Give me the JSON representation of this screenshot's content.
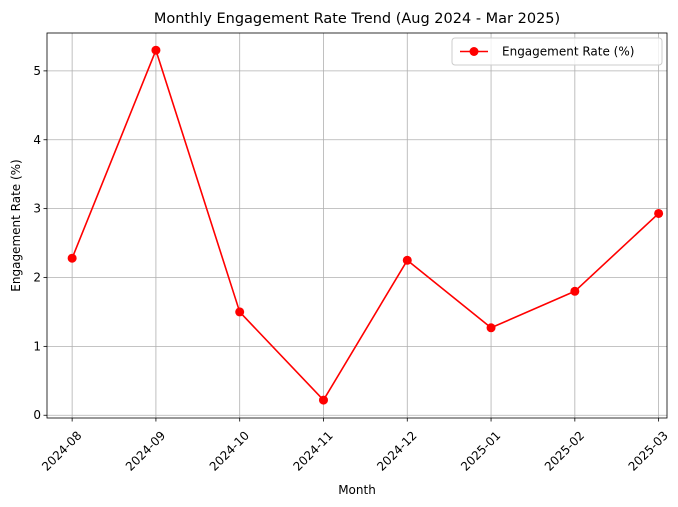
{
  "chart_data": {
    "type": "line",
    "title": "Monthly Engagement Rate Trend (Aug 2024 - Mar 2025)",
    "xlabel": "Month",
    "ylabel": "Engagement Rate (%)",
    "categories": [
      "2024-08",
      "2024-09",
      "2024-10",
      "2024-11",
      "2024-12",
      "2025-01",
      "2025-02",
      "2025-03"
    ],
    "series": [
      {
        "name": "Engagement Rate (%)",
        "values": [
          2.28,
          5.3,
          1.5,
          0.22,
          2.25,
          1.27,
          1.8,
          2.93
        ],
        "color": "#ff0000",
        "marker": "circle"
      }
    ],
    "ylim": [
      -0.04,
      5.55
    ],
    "yticks": [
      0,
      1,
      2,
      3,
      4,
      5
    ],
    "grid": true,
    "legend_position": "top-right",
    "x_tick_rotation": 45
  }
}
